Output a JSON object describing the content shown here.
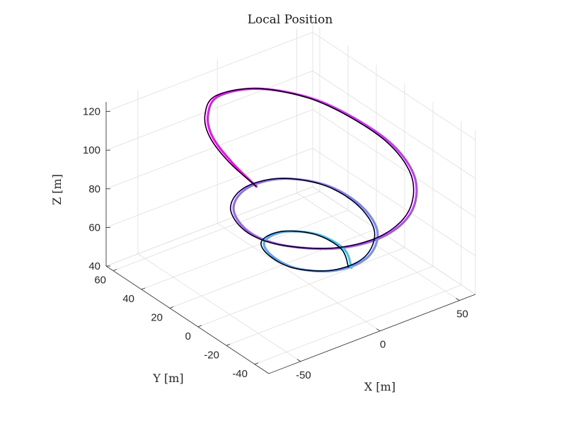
{
  "chart_data": {
    "type": "line",
    "title": "Local Position",
    "xlabel": "X [m]",
    "ylabel": "Y [m]",
    "zlabel": "Z [m]",
    "xlim": [
      -70,
      60
    ],
    "ylim": [
      -50,
      65
    ],
    "zlim": [
      40,
      125
    ],
    "x_ticks": [
      -50,
      0,
      50
    ],
    "y_ticks": [
      -40,
      -20,
      0,
      20,
      40,
      60
    ],
    "z_ticks": [
      40,
      60,
      80,
      100,
      120
    ],
    "grid": true,
    "legend": "none",
    "view": "3d",
    "colors": {
      "reference": "#000000",
      "actual_start": "#ff00ff",
      "actual_end": "#3ec8f5"
    },
    "series": [
      {
        "role": "reference",
        "points": [
          [
            -60,
            -30,
            124
          ],
          [
            -55,
            -5,
            123
          ],
          [
            -45,
            20,
            121
          ],
          [
            -30,
            40,
            118
          ],
          [
            -10,
            55,
            114
          ],
          [
            15,
            55,
            110
          ],
          [
            35,
            40,
            106
          ],
          [
            45,
            18,
            102
          ],
          [
            48,
            -5,
            98
          ],
          [
            40,
            -28,
            95
          ],
          [
            22,
            -45,
            92
          ],
          [
            0,
            -50,
            89
          ],
          [
            -22,
            -42,
            86
          ],
          [
            -38,
            -22,
            83
          ],
          [
            -40,
            0,
            80
          ],
          [
            -30,
            22,
            78
          ],
          [
            -10,
            35,
            76
          ],
          [
            12,
            35,
            74
          ],
          [
            28,
            22,
            72
          ],
          [
            32,
            2,
            70
          ],
          [
            25,
            -18,
            68
          ],
          [
            8,
            -30,
            66
          ],
          [
            -10,
            -28,
            64
          ],
          [
            -22,
            -14,
            62
          ],
          [
            -22,
            4,
            60
          ],
          [
            -14,
            18,
            58
          ],
          [
            2,
            22,
            56
          ],
          [
            16,
            14,
            54
          ],
          [
            20,
            0,
            52
          ],
          [
            14,
            -12,
            50
          ]
        ]
      },
      {
        "role": "actual",
        "points": [
          [
            -60,
            -30,
            124
          ],
          [
            -54,
            -6,
            123
          ],
          [
            -44,
            19,
            121
          ],
          [
            -29,
            39,
            118
          ],
          [
            -9,
            54,
            114
          ],
          [
            16,
            54,
            110
          ],
          [
            36,
            39,
            106
          ],
          [
            46,
            17,
            102
          ],
          [
            49,
            -6,
            98
          ],
          [
            41,
            -29,
            95
          ],
          [
            23,
            -46,
            92
          ],
          [
            1,
            -51,
            89
          ],
          [
            -21,
            -43,
            86
          ],
          [
            -37,
            -23,
            83
          ],
          [
            -39,
            -1,
            80
          ],
          [
            -29,
            21,
            78
          ],
          [
            -9,
            34,
            76
          ],
          [
            13,
            34,
            74
          ],
          [
            29,
            21,
            72
          ],
          [
            33,
            1,
            70
          ],
          [
            26,
            -19,
            68
          ],
          [
            9,
            -31,
            66
          ],
          [
            -9,
            -29,
            64
          ],
          [
            -21,
            -15,
            62
          ],
          [
            -21,
            3,
            60
          ],
          [
            -13,
            17,
            58
          ],
          [
            3,
            21,
            56
          ],
          [
            17,
            13,
            54
          ],
          [
            21,
            -1,
            52
          ],
          [
            15,
            -13,
            50
          ]
        ]
      }
    ]
  }
}
